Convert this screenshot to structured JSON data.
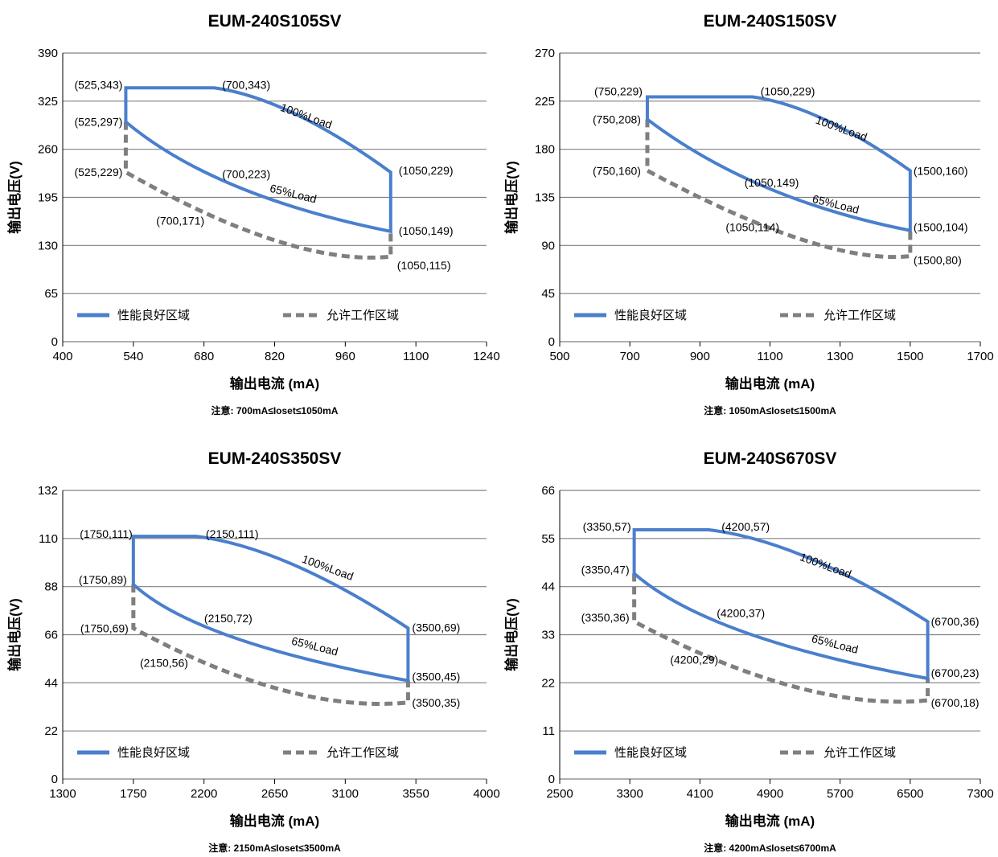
{
  "colors": {
    "good": "#4A7FCC",
    "allowed": "#7F7F7F",
    "grid": "#808080"
  },
  "chart_data": [
    {
      "type": "line",
      "title": "EUM-240S105SV",
      "xlabel": "输出电流 (mA)",
      "ylabel": "输出电压(V)",
      "note": "注意:  700mA≤Ioset≤1050mA",
      "xlim": [
        400,
        1240
      ],
      "ylim": [
        0,
        390
      ],
      "xticks": [
        400,
        540,
        680,
        820,
        960,
        1100,
        1240
      ],
      "yticks": [
        0,
        65,
        130,
        195,
        260,
        325,
        390
      ],
      "grid": true,
      "legend_position": "bottom",
      "series": [
        {
          "name": "性能良好区域",
          "style": "solid",
          "points": [
            [
              700,
              223
            ],
            [
              525,
              297
            ],
            [
              525,
              343
            ],
            [
              700,
              343
            ],
            [
              1050,
              229
            ],
            [
              1050,
              149
            ],
            [
              700,
              223
            ]
          ]
        },
        {
          "name": "允许工作区域",
          "style": "dashed",
          "points": [
            [
              525,
              297
            ],
            [
              525,
              229
            ],
            [
              700,
              171
            ],
            [
              1050,
              115
            ],
            [
              1050,
              149
            ]
          ]
        }
      ],
      "load_labels": [
        {
          "text": "100%Load",
          "x": 880,
          "y": 300,
          "angle": 20
        },
        {
          "text": "65%Load",
          "x": 855,
          "y": 195,
          "angle": 14
        }
      ],
      "point_labels": [
        {
          "text": "(525,343)",
          "x": 525,
          "y": 343,
          "anchor": "end",
          "dx": -4,
          "dy": 1
        },
        {
          "text": "(700,343)",
          "x": 700,
          "y": 343,
          "anchor": "start",
          "dx": 10,
          "dy": 1
        },
        {
          "text": "(525,297)",
          "x": 525,
          "y": 297,
          "anchor": "end",
          "dx": -4,
          "dy": 5
        },
        {
          "text": "(525,229)",
          "x": 525,
          "y": 229,
          "anchor": "end",
          "dx": -4,
          "dy": 5
        },
        {
          "text": "(700,223)",
          "x": 700,
          "y": 223,
          "anchor": "start",
          "dx": 10,
          "dy": 2
        },
        {
          "text": "(1050,229)",
          "x": 1050,
          "y": 229,
          "anchor": "start",
          "dx": 10,
          "dy": 3
        },
        {
          "text": "(700,171)",
          "x": 700,
          "y": 171,
          "anchor": "end",
          "dx": -12,
          "dy": 12
        },
        {
          "text": "(1050,149)",
          "x": 1050,
          "y": 149,
          "anchor": "start",
          "dx": 10,
          "dy": 4
        },
        {
          "text": "(1050,115)",
          "x": 1050,
          "y": 115,
          "anchor": "start",
          "dx": 8,
          "dy": 16
        }
      ]
    },
    {
      "type": "line",
      "title": "EUM-240S150SV",
      "xlabel": "输出电流 (mA)",
      "ylabel": "输出电压(V)",
      "note": "注意:  1050mA≤Ioset≤1500mA",
      "xlim": [
        500,
        1700
      ],
      "ylim": [
        0,
        270
      ],
      "xticks": [
        500,
        700,
        900,
        1100,
        1300,
        1500,
        1700
      ],
      "yticks": [
        0,
        45,
        90,
        135,
        180,
        225,
        270
      ],
      "grid": true,
      "legend_position": "bottom",
      "series": [
        {
          "name": "性能良好区域",
          "style": "solid",
          "points": [
            [
              1050,
              149
            ],
            [
              750,
              208
            ],
            [
              750,
              229
            ],
            [
              1050,
              229
            ],
            [
              1500,
              160
            ],
            [
              1500,
              104
            ],
            [
              1050,
              149
            ]
          ]
        },
        {
          "name": "允许工作区域",
          "style": "dashed",
          "points": [
            [
              750,
              208
            ],
            [
              750,
              160
            ],
            [
              1050,
              114
            ],
            [
              1500,
              80
            ],
            [
              1500,
              104
            ]
          ]
        }
      ],
      "load_labels": [
        {
          "text": "100%Load",
          "x": 1300,
          "y": 196,
          "angle": 20
        },
        {
          "text": "65%Load",
          "x": 1285,
          "y": 125,
          "angle": 14
        }
      ],
      "point_labels": [
        {
          "text": "(750,229)",
          "x": 750,
          "y": 229,
          "anchor": "end",
          "dx": -6,
          "dy": -2
        },
        {
          "text": "(1050,229)",
          "x": 1050,
          "y": 229,
          "anchor": "start",
          "dx": 10,
          "dy": -2
        },
        {
          "text": "(750,208)",
          "x": 750,
          "y": 208,
          "anchor": "end",
          "dx": -8,
          "dy": 5
        },
        {
          "text": "(750,160)",
          "x": 750,
          "y": 160,
          "anchor": "end",
          "dx": -8,
          "dy": 5
        },
        {
          "text": "(1050,149)",
          "x": 1050,
          "y": 149,
          "anchor": "start",
          "dx": -10,
          "dy": 5
        },
        {
          "text": "(1500,160)",
          "x": 1500,
          "y": 160,
          "anchor": "start",
          "dx": 4,
          "dy": 5
        },
        {
          "text": "(1050,114)",
          "x": 1050,
          "y": 114,
          "anchor": "middle",
          "dx": 0,
          "dy": 14
        },
        {
          "text": "(1500,104)",
          "x": 1500,
          "y": 104,
          "anchor": "start",
          "dx": 4,
          "dy": 1
        },
        {
          "text": "(1500,80)",
          "x": 1500,
          "y": 80,
          "anchor": "start",
          "dx": 4,
          "dy": 10
        }
      ]
    },
    {
      "type": "line",
      "title": "EUM-240S350SV",
      "xlabel": "输出电流 (mA)",
      "ylabel": "输出电压(V)",
      "note": "注意:  2150mA≤Ioset≤3500mA",
      "xlim": [
        1300,
        4000
      ],
      "ylim": [
        0,
        132
      ],
      "xticks": [
        1300,
        1750,
        2200,
        2650,
        3100,
        3550,
        4000
      ],
      "yticks": [
        0,
        22,
        44,
        66,
        88,
        110,
        132
      ],
      "grid": true,
      "legend_position": "bottom",
      "series": [
        {
          "name": "性能良好区域",
          "style": "solid",
          "points": [
            [
              2150,
              72
            ],
            [
              1750,
              89
            ],
            [
              1750,
              111
            ],
            [
              2150,
              111
            ],
            [
              3500,
              69
            ],
            [
              3500,
              45
            ],
            [
              2150,
              72
            ]
          ]
        },
        {
          "name": "允许工作区域",
          "style": "dashed",
          "points": [
            [
              1750,
              89
            ],
            [
              1750,
              69
            ],
            [
              2150,
              56
            ],
            [
              3500,
              35
            ],
            [
              3500,
              45
            ]
          ]
        }
      ],
      "load_labels": [
        {
          "text": "100%Load",
          "x": 2980,
          "y": 95,
          "angle": 20
        },
        {
          "text": "65%Load",
          "x": 2900,
          "y": 59,
          "angle": 14
        }
      ],
      "point_labels": [
        {
          "text": "(1750,111)",
          "x": 1750,
          "y": 111,
          "anchor": "end",
          "dx": -1,
          "dy": 2
        },
        {
          "text": "(2150,111)",
          "x": 2150,
          "y": 111,
          "anchor": "start",
          "dx": 12,
          "dy": 2
        },
        {
          "text": "(1750,89)",
          "x": 1750,
          "y": 89,
          "anchor": "end",
          "dx": -8,
          "dy": -1
        },
        {
          "text": "(1750,69)",
          "x": 1750,
          "y": 69,
          "anchor": "end",
          "dx": -6,
          "dy": 5
        },
        {
          "text": "(2150,72)",
          "x": 2150,
          "y": 72,
          "anchor": "start",
          "dx": 10,
          "dy": 1
        },
        {
          "text": "(3500,69)",
          "x": 3500,
          "y": 69,
          "anchor": "start",
          "dx": 5,
          "dy": 4
        },
        {
          "text": "(2150,56)",
          "x": 2150,
          "y": 56,
          "anchor": "end",
          "dx": -10,
          "dy": 13
        },
        {
          "text": "(3500,45)",
          "x": 3500,
          "y": 45,
          "anchor": "start",
          "dx": 5,
          "dy": 0
        },
        {
          "text": "(3500,35)",
          "x": 3500,
          "y": 35,
          "anchor": "start",
          "dx": 5,
          "dy": 5
        }
      ]
    },
    {
      "type": "line",
      "title": "EUM-240S670SV",
      "xlabel": "输出电流 (mA)",
      "ylabel": "输出电压(V)",
      "note": "注意:  4200mA≤Ioset≤6700mA",
      "xlim": [
        2500,
        7300
      ],
      "ylim": [
        0,
        66
      ],
      "xticks": [
        2500,
        3300,
        4100,
        4900,
        5700,
        6500,
        7300
      ],
      "yticks": [
        0,
        11,
        22,
        33,
        44,
        55,
        66
      ],
      "grid": true,
      "legend_position": "bottom",
      "series": [
        {
          "name": "性能良好区域",
          "style": "solid",
          "points": [
            [
              4200,
              37
            ],
            [
              3350,
              47
            ],
            [
              3350,
              57
            ],
            [
              4200,
              57
            ],
            [
              6700,
              36
            ],
            [
              6700,
              23
            ],
            [
              4200,
              37
            ]
          ]
        },
        {
          "name": "允许工作区域",
          "style": "dashed",
          "points": [
            [
              3350,
              47
            ],
            [
              3350,
              36
            ],
            [
              4200,
              29
            ],
            [
              6700,
              18
            ],
            [
              6700,
              23
            ]
          ]
        }
      ],
      "load_labels": [
        {
          "text": "100%Load",
          "x": 5520,
          "y": 48,
          "angle": 20
        },
        {
          "text": "65%Load",
          "x": 5630,
          "y": 30,
          "angle": 14
        }
      ],
      "point_labels": [
        {
          "text": "(3350,57)",
          "x": 3350,
          "y": 57,
          "anchor": "end",
          "dx": -4,
          "dy": 1
        },
        {
          "text": "(4200,57)",
          "x": 4200,
          "y": 57,
          "anchor": "start",
          "dx": 16,
          "dy": 1
        },
        {
          "text": "(3350,47)",
          "x": 3350,
          "y": 47,
          "anchor": "end",
          "dx": -6,
          "dy": 0
        },
        {
          "text": "(3350,36)",
          "x": 3350,
          "y": 36,
          "anchor": "end",
          "dx": -6,
          "dy": 0
        },
        {
          "text": "(4200,37)",
          "x": 4200,
          "y": 37,
          "anchor": "start",
          "dx": 10,
          "dy": 0
        },
        {
          "text": "(6700,36)",
          "x": 6700,
          "y": 36,
          "anchor": "start",
          "dx": 4,
          "dy": 5
        },
        {
          "text": "(4200,29)",
          "x": 4200,
          "y": 29,
          "anchor": "middle",
          "dx": -18,
          "dy": 14
        },
        {
          "text": "(6700,23)",
          "x": 6700,
          "y": 23,
          "anchor": "start",
          "dx": 4,
          "dy": -2
        },
        {
          "text": "(6700,18)",
          "x": 6700,
          "y": 18,
          "anchor": "start",
          "dx": 4,
          "dy": 8
        }
      ]
    }
  ]
}
